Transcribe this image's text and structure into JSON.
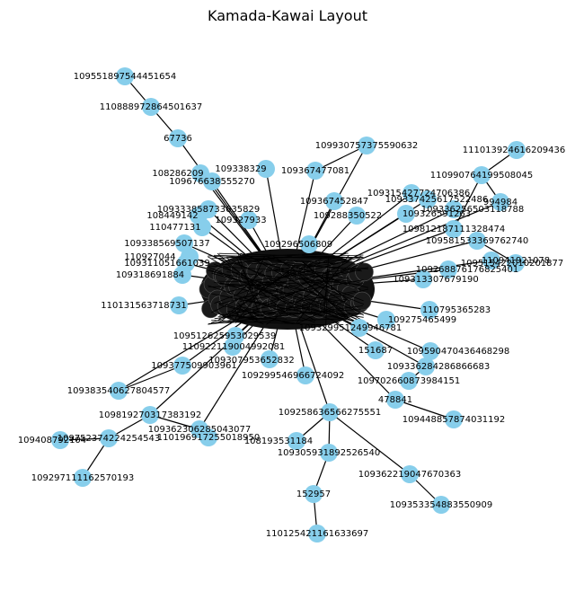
{
  "chart_data": {
    "type": "network",
    "title": "Kamada-Kawai Layout",
    "node_color": "#87ceeb",
    "edge_color": "#000000",
    "nodes": [
      {
        "id": "109551897544451654"
      },
      {
        "id": "110888972864501637"
      },
      {
        "id": "67736"
      },
      {
        "id": "109930757375590632"
      },
      {
        "id": "111013924616209436"
      },
      {
        "id": "110990764199508045"
      },
      {
        "id": "994984"
      },
      {
        "id": "109812187111328474"
      },
      {
        "id": "109581533369762740"
      },
      {
        "id": "109515422010201877"
      },
      {
        "id": "109333858733635829"
      },
      {
        "id": "109338569507137"
      },
      {
        "id": "109311051661039"
      },
      {
        "id": "109318691884"
      },
      {
        "id": "110131563718731"
      },
      {
        "id": "109512625953029539"
      },
      {
        "id": "110922119004992081"
      },
      {
        "id": "109377509903961"
      },
      {
        "id": "109383540627804577"
      },
      {
        "id": "109819270317383192"
      },
      {
        "id": "109362306285043077"
      },
      {
        "id": "110196917255018950"
      },
      {
        "id": "109408792104"
      },
      {
        "id": "109752374224254543"
      },
      {
        "id": "109297111162570193"
      },
      {
        "id": "109258636566275551"
      },
      {
        "id": "108193531184"
      },
      {
        "id": "109305931892526540"
      },
      {
        "id": "152957"
      },
      {
        "id": "110125421161633697"
      },
      {
        "id": "109362219047670363"
      },
      {
        "id": "109353354883550909"
      },
      {
        "id": "478841"
      },
      {
        "id": "109448857874031192"
      },
      {
        "id": "109336284286866683"
      },
      {
        "id": "109702660873984151"
      },
      {
        "id": "151687"
      },
      {
        "id": "109590470436468298"
      },
      {
        "id": "109329951249946781"
      },
      {
        "id": "109307953652832"
      },
      {
        "id": "109299546966724092"
      },
      {
        "id": "109296506809"
      },
      {
        "id": "109288350522"
      },
      {
        "id": "109315427724706386"
      },
      {
        "id": "109337425617522486"
      },
      {
        "id": "109326591263"
      },
      {
        "id": "109338329"
      },
      {
        "id": "108286209"
      },
      {
        "id": "109676638555270"
      },
      {
        "id": "108449142"
      },
      {
        "id": "110477131"
      },
      {
        "id": "109327933"
      },
      {
        "id": "110927044"
      },
      {
        "id": "109367452847"
      },
      {
        "id": "109336256503118788"
      },
      {
        "id": "109313307679190"
      },
      {
        "id": "110795365283"
      },
      {
        "id": "109275465499"
      },
      {
        "id": "110941921078"
      },
      {
        "id": "109268876176825401"
      },
      {
        "id": "109367477081"
      }
    ]
  }
}
